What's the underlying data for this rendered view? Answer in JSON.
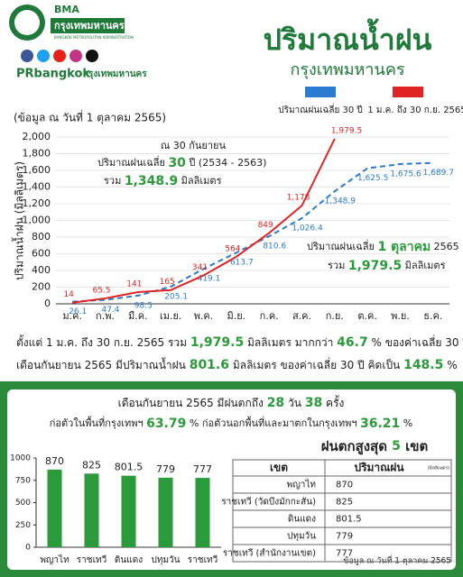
{
  "header": {
    "org": "BMA",
    "org_thai": "กรุงเทพมหานคร",
    "org_en": "BANGKOK METROPOLITAN ADMINISTRATION",
    "handle": "PRbangkok",
    "handle_thai": "กรุงเทพมหานคร",
    "title": "ปริมาณน้ำฝน",
    "subtitle": "กรุงเทพมหานคร"
  },
  "data_date": "(ข้อมูล ณ วันที่ 1 ตุลาคม 2565)",
  "chart_data": [
    {
      "type": "line",
      "ylabel": "ปริมาณน้ำฝน (มิลลิเมตร)",
      "categories": [
        "ม.ค.",
        "ก.พ.",
        "มี.ค.",
        "เม.ย.",
        "พ.ค.",
        "มิ.ย.",
        "ก.ค.",
        "ส.ค.",
        "ก.ย.",
        "ต.ค.",
        "พ.ย.",
        "ธ.ค."
      ],
      "series": [
        {
          "name": "ปริมาณฝนเฉลี่ย 30 ปี",
          "color": "#2b7bd0",
          "dashed": true,
          "values": [
            26.1,
            47.4,
            98.5,
            205.1,
            419.1,
            613.7,
            810.6,
            1026.4,
            1348.9,
            1625.5,
            1675.6,
            1689.7
          ],
          "value_labels": [
            "26.1",
            "47.4",
            "98.5",
            "205.1",
            "419.1",
            "613.7",
            "810.6",
            "1,026.4",
            "1,348.9",
            "1,625.5",
            "1,675.6",
            "1,689.7"
          ]
        },
        {
          "name": "1 ม.ค. ถึง 30 ก.ย. 2565",
          "color": "#e02424",
          "dashed": false,
          "values": [
            14,
            65.5,
            141,
            165,
            341,
            564,
            849,
            1178,
            1979.5,
            null,
            null,
            null
          ],
          "value_labels": [
            "14",
            "65.5",
            "141",
            "165",
            "341",
            "564",
            "849",
            "1,178",
            "1,979.5",
            null,
            null,
            null
          ]
        }
      ],
      "ylim": [
        0,
        2000
      ],
      "yticks": [
        0,
        200,
        400,
        600,
        800,
        {
          "value": 1000,
          "label": "1,000"
        },
        {
          "value": 1200,
          "label": "1,200"
        },
        {
          "value": 1400,
          "label": "1,400"
        },
        {
          "value": 1600,
          "label": "1,600"
        },
        {
          "value": 1800,
          "label": "1,800"
        },
        {
          "value": 2000,
          "label": "2,000"
        }
      ],
      "grid": true,
      "annotations": [
        [
          "ณ 30 กันยายน"
        ],
        [
          "ปริมาณฝนเฉลี่ย ",
          "30",
          " ปี (2534 - 2563)"
        ],
        [
          "รวม ",
          "1,348.9",
          " มิลลิเมตร"
        ],
        [
          "ปริมาณฝนเฉลี่ย ",
          "1 ตุลาคม",
          " 2565"
        ],
        [
          "รวม ",
          "1,979.5",
          " มิลลิเมตร"
        ]
      ]
    },
    {
      "type": "bar",
      "categories": [
        "พญาไท",
        "ราชเทวี",
        "ดินแดง",
        "ปทุมวัน",
        "ราชเทวี"
      ],
      "values": [
        870,
        825,
        801.5,
        779,
        777
      ],
      "color": "#2a9a3a",
      "ylim": [
        0,
        1000
      ],
      "yticks": [
        0,
        250,
        500,
        750,
        1000
      ],
      "grid": false
    }
  ],
  "summary": [
    [
      "ตั้งแต่ 1 ม.ค. ถึง 30 ก.ย. 2565 รวม ",
      "1,979.5",
      " มิลลิเมตร มากกว่า ",
      "46.7",
      " % ของค่าเฉลี่ย 30 ปี"
    ],
    [
      "เดือนกันยายน 2565 มีปริมาณน้ำฝน ",
      "801.6",
      " มิลลิเมตร ของค่าเฉลี่ย 30 ปี คิดเป็น ",
      "148.5",
      " %"
    ]
  ],
  "september": [
    [
      "เดือนกันยายน 2565 มีฝนตกถึง ",
      "28",
      " วัน ",
      "38",
      " ครั้ง"
    ],
    [
      "ก่อตัวในพื้นที่กรุงเทพฯ ",
      "63.79",
      " % ก่อตัวนอกพื้นที่และมาตกในกรุงเทพฯ ",
      "36.21",
      " %"
    ],
    [
      "ฝนตกสูงสุด ",
      "5",
      " เขต"
    ]
  ],
  "table": {
    "header": [
      "เขต",
      "ปริมาณฝน",
      "(มิลลิเมตร)"
    ],
    "rows": [
      [
        "พญาไท",
        "870"
      ],
      [
        "ราชเทวี (วัดบึงมักกะสัน)",
        "825"
      ],
      [
        "ดินแดง",
        "801.5"
      ],
      [
        "ปทุมวัน",
        "779"
      ],
      [
        "ราชเทวี (สำนักงานเขต)",
        "777"
      ]
    ]
  },
  "footnote": "ข้อมูล ณ วันที่ 1 ตุลาคม 2565"
}
